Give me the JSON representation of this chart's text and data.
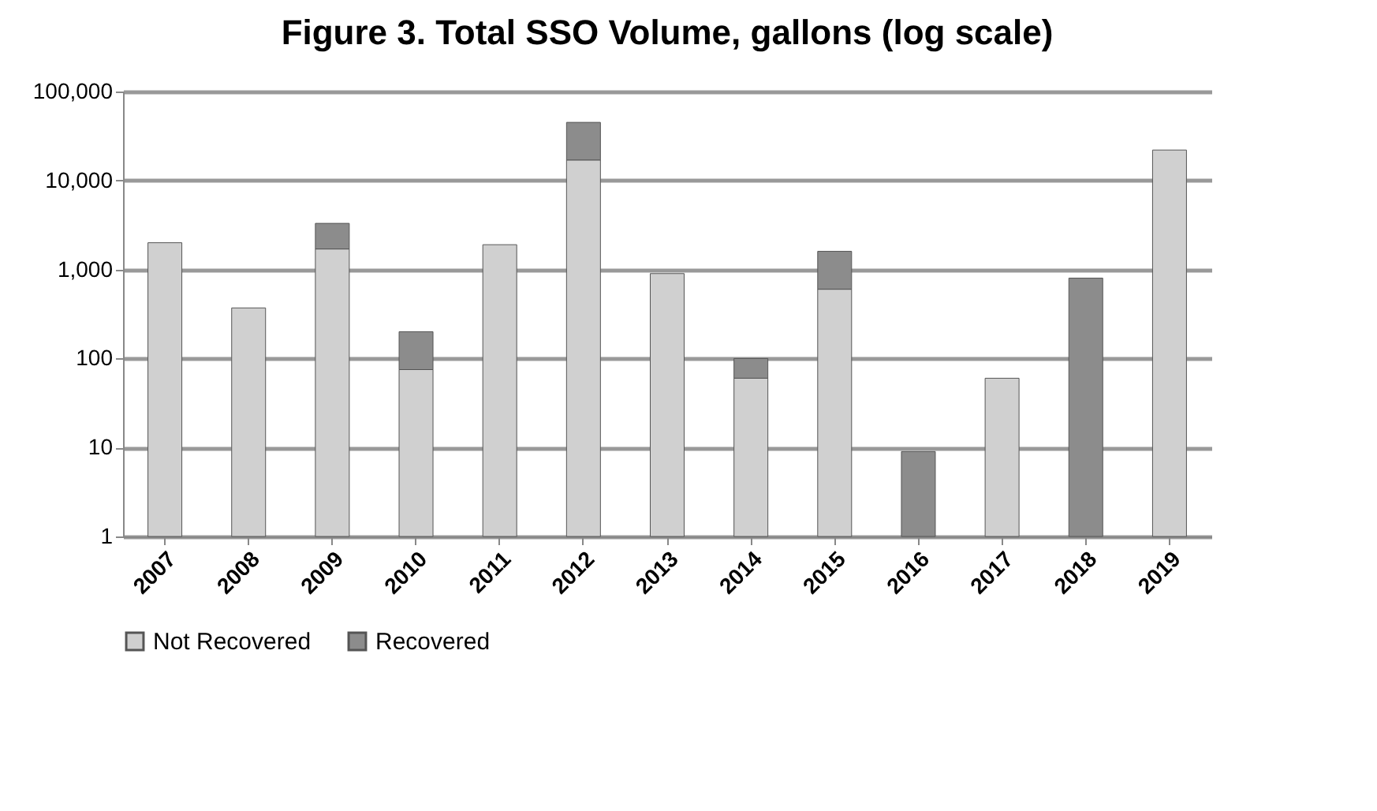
{
  "chart_data": {
    "type": "bar",
    "title": "Figure 3. Total SSO Volume, gallons (log scale)",
    "categories": [
      "2007",
      "2008",
      "2009",
      "2010",
      "2011",
      "2012",
      "2013",
      "2014",
      "2015",
      "2016",
      "2017",
      "2018",
      "2019"
    ],
    "series": [
      {
        "name": "Not Recovered",
        "color": "#d0d0d0",
        "values": [
          2000,
          370,
          1700,
          75,
          1900,
          17000,
          900,
          60,
          600,
          null,
          60,
          null,
          22000
        ]
      },
      {
        "name": "Recovered",
        "color": "#8c8c8c",
        "values": [
          null,
          null,
          1600,
          125,
          null,
          28000,
          null,
          40,
          1000,
          9,
          null,
          800,
          null
        ]
      }
    ],
    "stacked": true,
    "log": true,
    "ylim": [
      1,
      100000
    ],
    "yticks": [
      1,
      10,
      100,
      {
        "value": 1000,
        "label": "1,000"
      },
      {
        "value": 10000,
        "label": "10,000"
      },
      {
        "value": 100000,
        "label": "100,000"
      }
    ],
    "grid": "y",
    "legend": "bottom"
  }
}
